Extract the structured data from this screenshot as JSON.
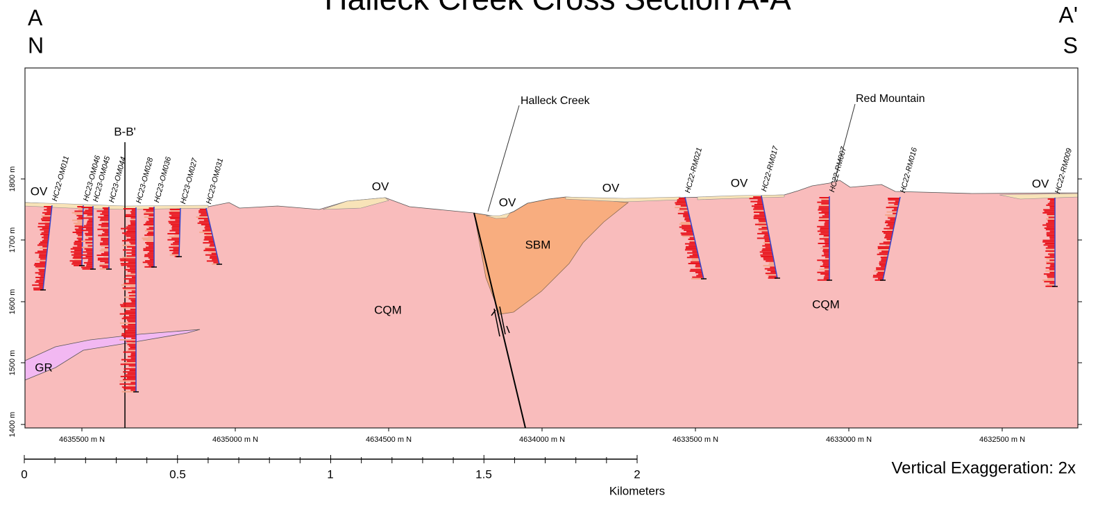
{
  "header": {
    "title": "Halleck Creek Cross Section A-A'",
    "left_end": "A",
    "left_direction": "N",
    "right_end": "A'",
    "right_direction": "S"
  },
  "elevation_labels": [
    "1800 m",
    "1700 m",
    "1600 m",
    "1500 m",
    "1400 m"
  ],
  "northing_labels": [
    "4635500 m N",
    "4635000 m N",
    "4634500 m N",
    "4634000 m N",
    "4633500 m N",
    "4633000 m N",
    "4632500 m N"
  ],
  "units": {
    "ov": "OV",
    "cqm": "CQM",
    "sbm": "SBM",
    "gr": "GR"
  },
  "places": [
    "Halleck Creek",
    "Red Mountain"
  ],
  "section_line": "B-B'",
  "drillholes": [
    "HC22-OM011",
    "HC23-OM046",
    "HC23-OM045",
    "HC23-OM044",
    "HC23-OM028",
    "HC23-OM036",
    "HC23-OM027",
    "HC23-OM031",
    "HC22-RM021",
    "HC22-RM017",
    "HC22-RM007",
    "HC22-RM016",
    "HC22-RM009"
  ],
  "scale_bar": {
    "labels": [
      "0",
      "0.5",
      "1",
      "1.5",
      "2"
    ],
    "unit": "Kilometers"
  },
  "vertical_exaggeration": "Vertical Exaggeration: 2x"
}
